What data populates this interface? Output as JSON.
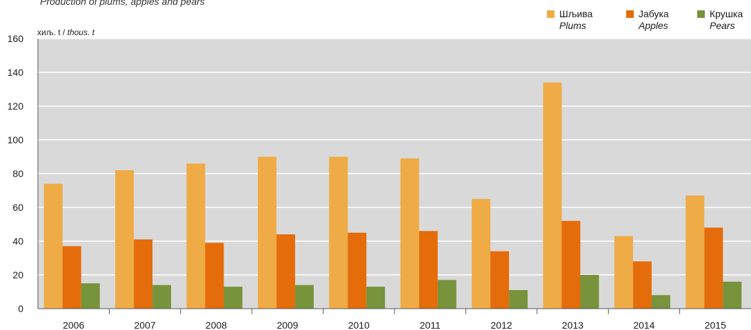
{
  "chart_data": {
    "type": "bar",
    "subtitle": "Production of plums, apples and pears",
    "unit_label": "хиљ. t",
    "unit_label_en": "thous. t",
    "categories": [
      "2006",
      "2007",
      "2008",
      "2009",
      "2010",
      "2011",
      "2012",
      "2013",
      "2014",
      "2015"
    ],
    "series": [
      {
        "name": "Шљива",
        "name_en": "Plums",
        "color": "#EFAB45",
        "values": [
          74,
          82,
          86,
          90,
          90,
          89,
          65,
          134,
          43,
          67
        ]
      },
      {
        "name": "Јабука",
        "name_en": "Apples",
        "color": "#E46C0A",
        "values": [
          37,
          41,
          39,
          44,
          45,
          46,
          34,
          52,
          28,
          48
        ]
      },
      {
        "name": "Крушка",
        "name_en": "Pears",
        "color": "#77933C",
        "values": [
          15,
          14,
          13,
          14,
          13,
          17,
          11,
          20,
          8,
          16
        ]
      }
    ],
    "ylim": [
      0,
      160
    ],
    "yticks": [
      0,
      20,
      40,
      60,
      80,
      100,
      120,
      140,
      160
    ],
    "grid": true,
    "legend": "top-right",
    "plot_background": "#D9D9D9"
  }
}
